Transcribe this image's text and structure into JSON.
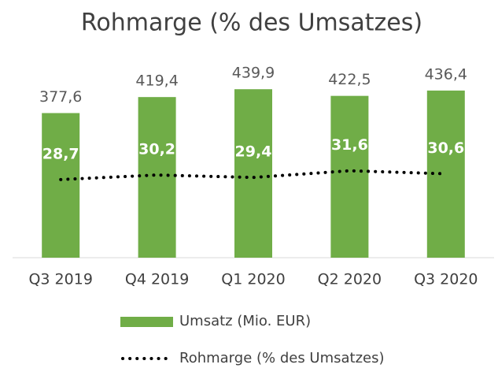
{
  "chart_data": {
    "type": "bar",
    "title": "Rohmarge (% des Umsatzes)",
    "categories": [
      "Q3 2019",
      "Q4 2019",
      "Q1 2020",
      "Q2 2020",
      "Q3 2020"
    ],
    "series": [
      {
        "name": "Umsatz (Mio. EUR)",
        "type": "bar",
        "color": "#70ad47",
        "values": [
          377.6,
          419.4,
          439.9,
          422.5,
          436.4
        ],
        "value_labels": [
          "377,6",
          "419,4",
          "439,9",
          "422,5",
          "436,4"
        ]
      },
      {
        "name": "Rohmarge (% des Umsatzes)",
        "type": "line",
        "axis": "y2",
        "color": "#000000",
        "values": [
          28.7,
          30.2,
          29.4,
          31.6,
          30.6
        ],
        "value_labels": [
          "28,7",
          "30,2",
          "29,4",
          "31,6",
          "30,6"
        ]
      }
    ],
    "ylim": [
      0,
      500
    ],
    "y2lim": [
      3,
      66
    ],
    "legend": "bottom"
  }
}
